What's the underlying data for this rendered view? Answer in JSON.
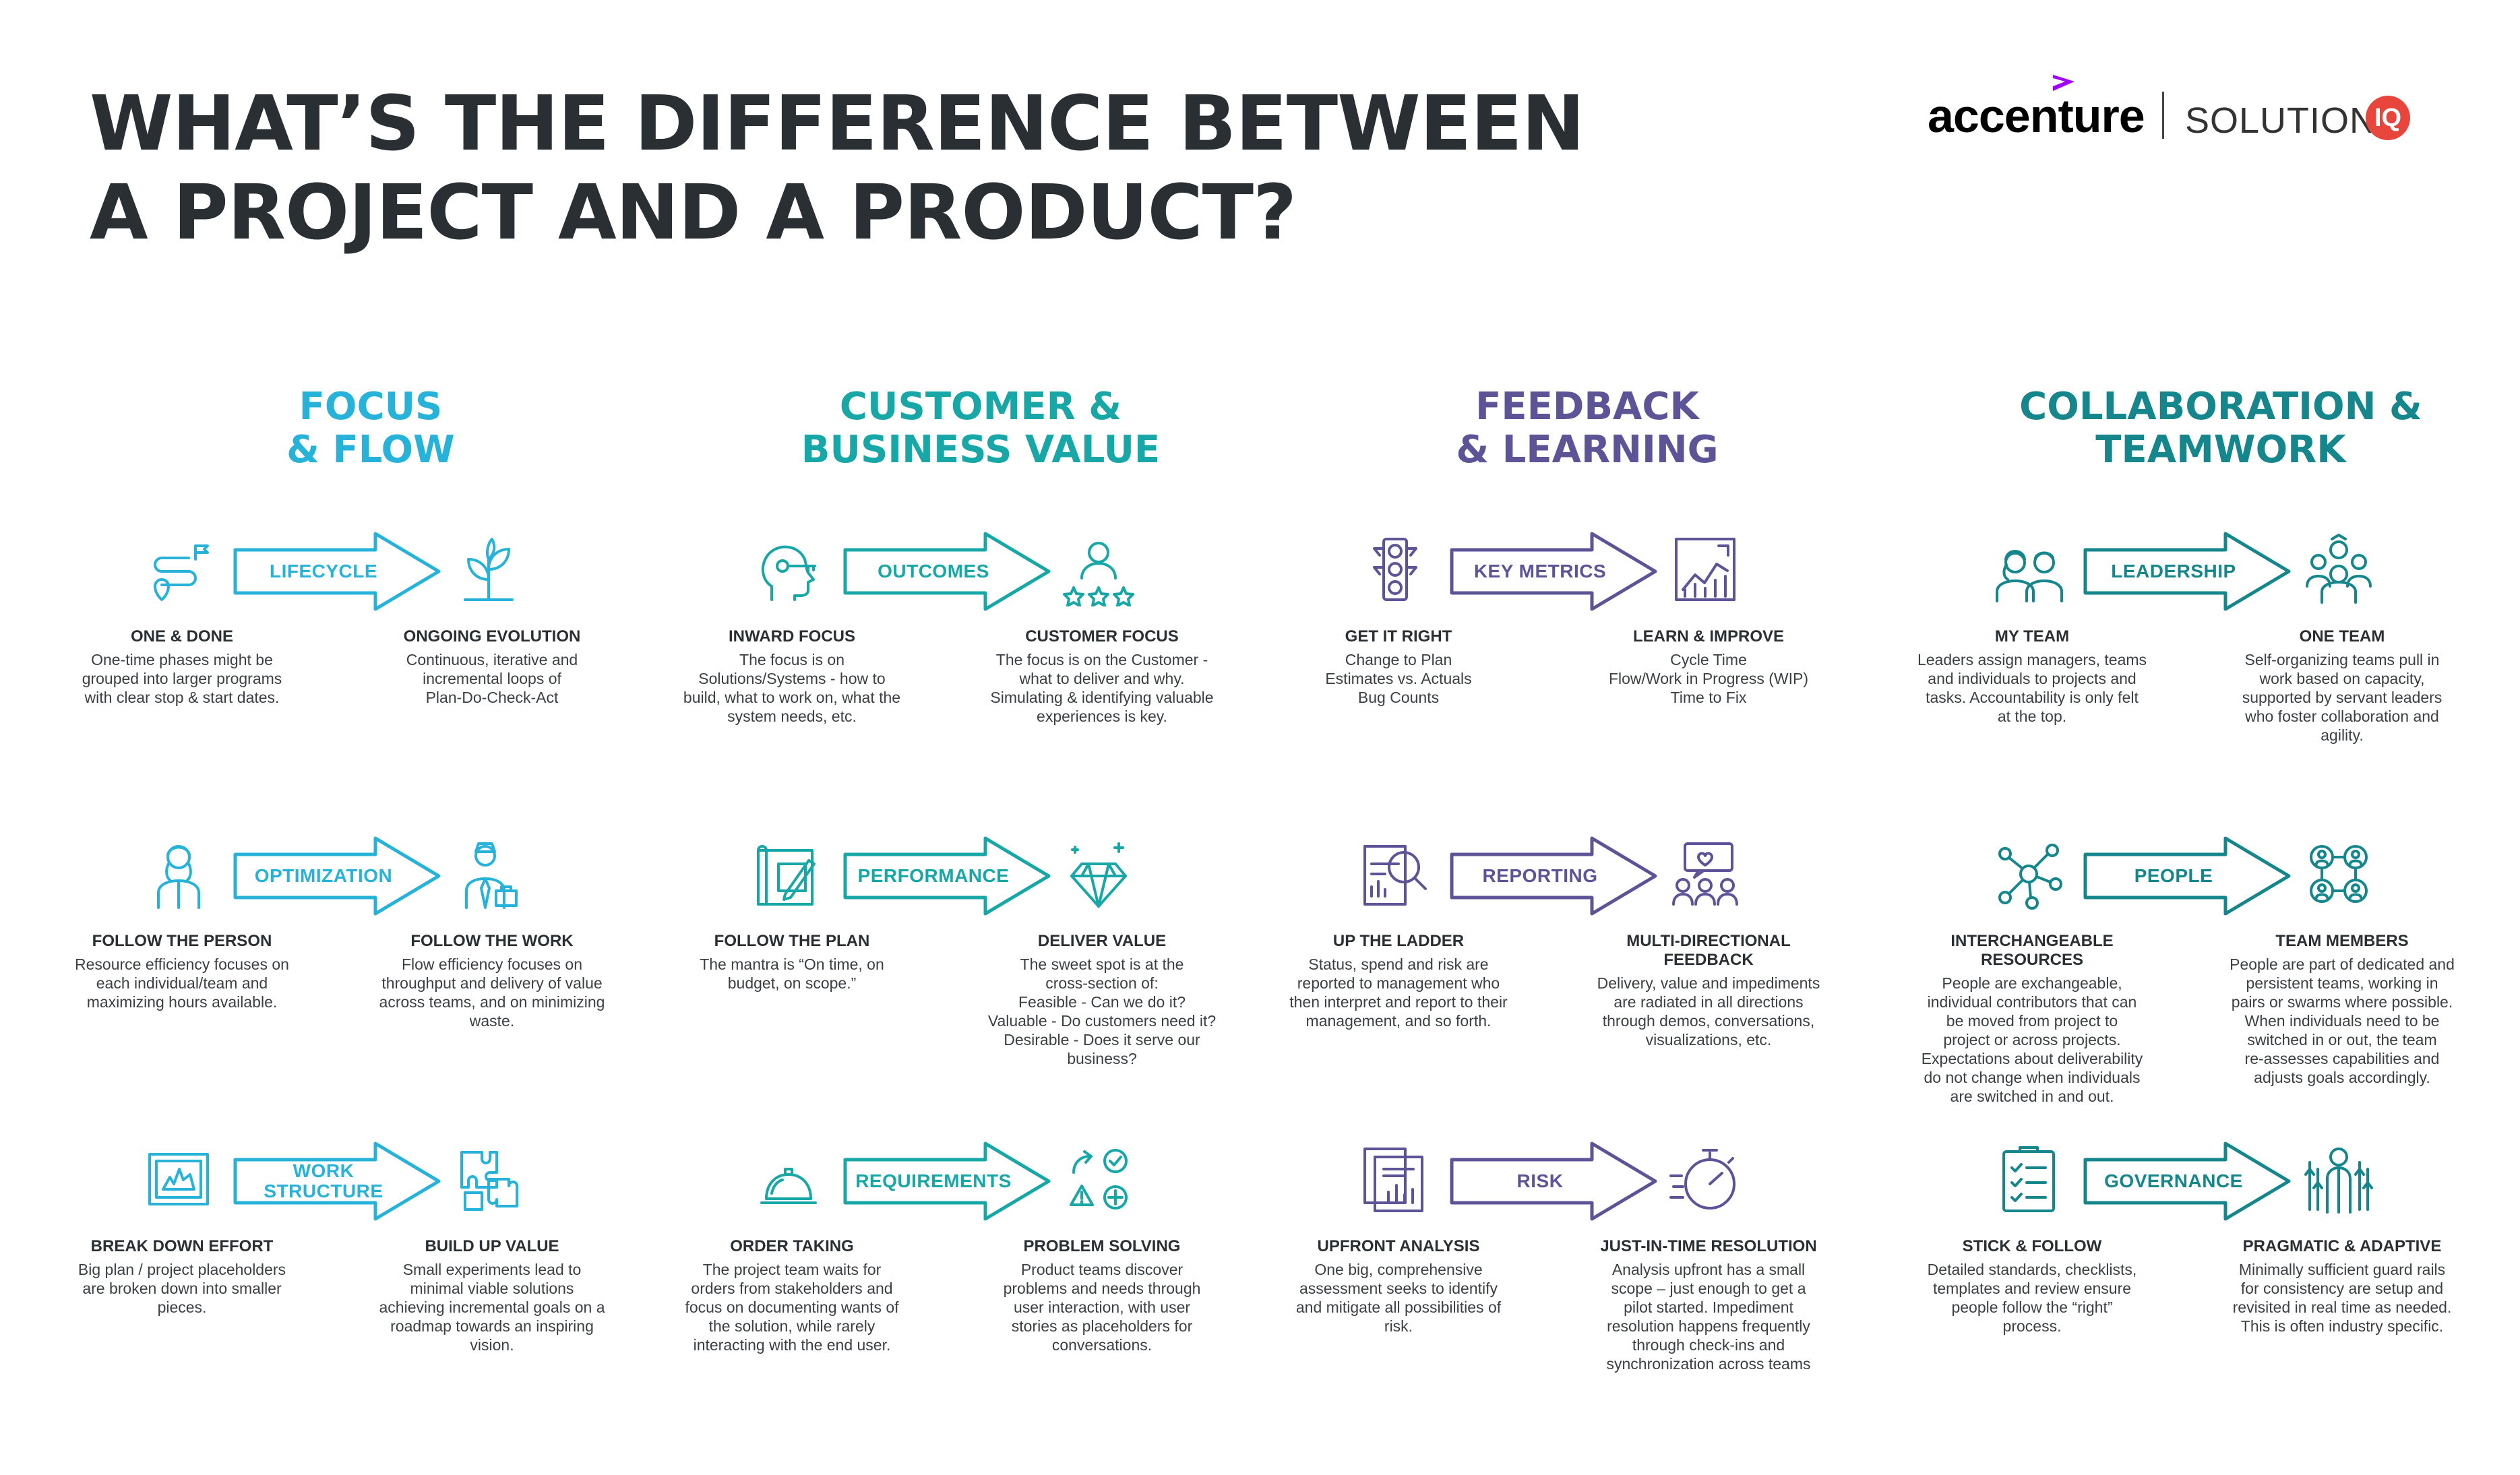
{
  "title": {
    "line1": "WHAT’S THE DIFFERENCE BETWEEN",
    "line2": "A PROJECT AND A PRODUCT?"
  },
  "logo": {
    "brand": "accenture",
    "solutions": "SOLUTIONS",
    "iq": "IQ"
  },
  "colors": {
    "focus": "#27b3d9",
    "value": "#16a7a6",
    "feedback": "#5d5498",
    "collab": "#14868c",
    "text": "#2a2f33",
    "accent_purple": "#a100ff",
    "iq_red": "#e8453c"
  },
  "columns": [
    {
      "heading1": "FOCUS",
      "heading2": "& FLOW"
    },
    {
      "heading1": "CUSTOMER &",
      "heading2": "BUSINESS VALUE"
    },
    {
      "heading1": "FEEDBACK",
      "heading2": "& LEARNING"
    },
    {
      "heading1": "COLLABORATION &",
      "heading2": "TEAMWORK"
    }
  ],
  "cells": [
    [
      {
        "arrow": "LIFECYCLE",
        "left_icon": "roadmap-icon",
        "right_icon": "sprout-icon",
        "left_title": "ONE & DONE",
        "left_text": "One-time phases might be\ngrouped into larger programs\nwith clear stop & start dates.",
        "right_title": "ONGOING EVOLUTION",
        "right_text": "Continuous, iterative and\nincremental loops of\nPlan-Do-Check-Act"
      },
      {
        "arrow": "OPTIMIZATION",
        "left_icon": "person-icon",
        "right_icon": "worker-icon",
        "left_title": "FOLLOW THE PERSON",
        "left_text": "Resource efficiency focuses on\neach individual/team and\nmaximizing hours available.",
        "right_title": "FOLLOW THE WORK",
        "right_text": "Flow efficiency focuses on\nthroughput and delivery of value\nacross teams, and on minimizing\nwaste."
      },
      {
        "arrow": "WORK\nSTRUCTURE",
        "left_icon": "broken-frame-icon",
        "right_icon": "puzzle-icon",
        "left_title": "BREAK DOWN EFFORT",
        "left_text": "Big plan / project placeholders\nare broken down into smaller\npieces.",
        "right_title": "BUILD UP VALUE",
        "right_text": "Small experiments lead to\nminimal viable solutions\nachieving incremental goals on a\nroadmap towards an inspiring\nvision."
      }
    ],
    [
      {
        "arrow": "OUTCOMES",
        "left_icon": "head-key-icon",
        "right_icon": "customer-rating-icon",
        "left_title": "INWARD FOCUS",
        "left_text": "The focus is on\nSolutions/Systems - how to\nbuild, what to work on, what the\nsystem needs, etc.",
        "right_title": "CUSTOMER FOCUS",
        "right_text": "The focus is on the Customer -\nwhat to deliver and why.\nSimulating & identifying valuable\nexperiences is key."
      },
      {
        "arrow": "PERFORMANCE",
        "left_icon": "blueprint-icon",
        "right_icon": "diamond-icon",
        "left_title": "FOLLOW THE PLAN",
        "left_text": "The mantra is “On time, on\nbudget, on scope.”",
        "right_title": "DELIVER VALUE",
        "right_text": "The sweet spot is at the\ncross-section of:\nFeasible - Can we do it?\nValuable - Do customers need it?\nDesirable - Does it serve our\nbusiness?"
      },
      {
        "arrow": "REQUIREMENTS",
        "left_icon": "service-bell-icon",
        "right_icon": "problem-solving-icon",
        "left_title": "ORDER TAKING",
        "left_text": "The project team waits for\norders from stakeholders and\nfocus on documenting wants of\nthe solution, while rarely\ninteracting with the end user.",
        "right_title": "PROBLEM SOLVING",
        "right_text": "Product teams discover\nproblems and needs through\nuser interaction, with user\nstories as placeholders for\nconversations."
      }
    ],
    [
      {
        "arrow": "KEY METRICS",
        "left_icon": "traffic-light-icon",
        "right_icon": "growth-chart-icon",
        "left_title": "GET IT RIGHT",
        "left_text": "Change to Plan\nEstimates vs. Actuals\nBug Counts",
        "right_title": "LEARN & IMPROVE",
        "right_text": "Cycle Time\nFlow/Work in Progress (WIP)\nTime to Fix"
      },
      {
        "arrow": "REPORTING",
        "left_icon": "report-magnifier-icon",
        "right_icon": "group-feedback-icon",
        "left_title": "UP THE LADDER",
        "left_text": "Status, spend and risk are\nreported to management who\nthen interpret and report to their\nmanagement, and so forth.",
        "right_title": "MULTI-DIRECTIONAL\nFEEDBACK",
        "right_text": "Delivery, value and impediments\nare radiated in all directions\nthrough demos, conversations,\nvisualizations, etc."
      },
      {
        "arrow": "RISK",
        "left_icon": "documents-chart-icon",
        "right_icon": "stopwatch-icon",
        "left_title": "UPFRONT ANALYSIS",
        "left_text": "One big, comprehensive\nassessment seeks to identify\nand mitigate all possibilities of\nrisk.",
        "right_title": "JUST-IN-TIME RESOLUTION",
        "right_text": "Analysis upfront has a small\nscope – just enough to get a\npilot started. Impediment\nresolution happens frequently\nthrough check-ins and\nsynchronization across teams"
      }
    ],
    [
      {
        "arrow": "LEADERSHIP",
        "left_icon": "team-pair-icon",
        "right_icon": "team-group-icon",
        "left_title": "MY TEAM",
        "left_text": "Leaders assign managers, teams\nand individuals to projects and\ntasks. Accountability is only felt\nat the top.",
        "right_title": "ONE TEAM",
        "right_text": "Self-organizing teams pull in\nwork based on capacity,\nsupported by servant leaders\nwho foster collaboration and\nagility."
      },
      {
        "arrow": "PEOPLE",
        "left_icon": "network-nodes-icon",
        "right_icon": "team-members-icon",
        "left_title": "INTERCHANGEABLE\nRESOURCES",
        "left_text": "People are exchangeable,\nindividual contributors that can\nbe moved from project to\nproject or across projects.\nExpectations about deliverability\ndo not change when individuals\nare switched in and out.",
        "right_title": "TEAM MEMBERS",
        "right_text": "People are part of dedicated and\npersistent teams, working in\npairs or swarms where possible.\nWhen individuals need to be\nswitched in or out, the team\nre-assesses capabilities and\nadjusts goals accordingly."
      },
      {
        "arrow": "GOVERNANCE",
        "left_icon": "checklist-icon",
        "right_icon": "adaptive-person-icon",
        "left_title": "STICK & FOLLOW",
        "left_text": "Detailed standards, checklists,\ntemplates and review ensure\npeople follow the “right”\nprocess.",
        "right_title": "PRAGMATIC & ADAPTIVE",
        "right_text": "Minimally sufficient guard rails\nfor consistency are setup and\nrevisited in real time as needed.\nThis is often industry specific."
      }
    ]
  ]
}
